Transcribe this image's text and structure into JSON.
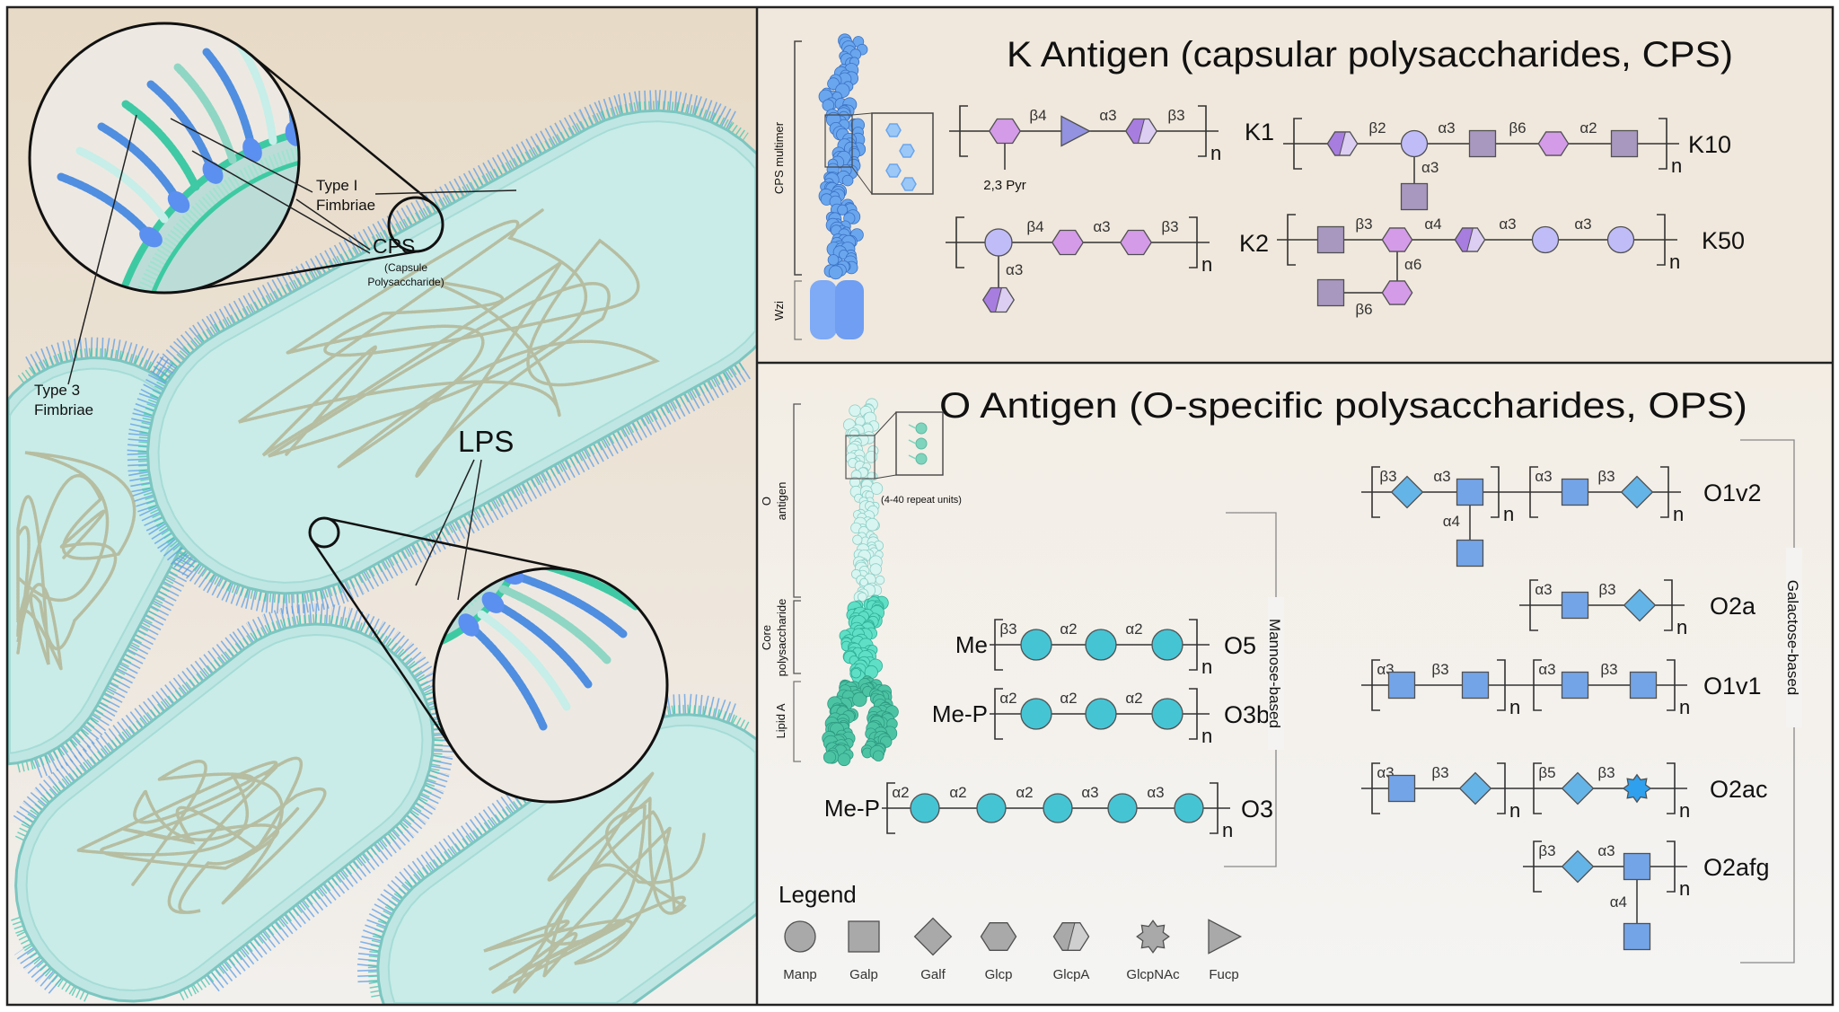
{
  "left_panel": {
    "type1_label": [
      "Type I",
      "Fimbriae"
    ],
    "cps_label": "CPS",
    "cps_sub_label": [
      "(Capsule",
      "Polysaccharide)"
    ],
    "type3_label": [
      "Type 3",
      "Fimbriae"
    ],
    "lps_label": "LPS"
  },
  "k_antigen": {
    "title": "K Antigen (capsular polysaccharides, CPS)",
    "cps_multimer_label": "CPS multimer",
    "wzi_label": "Wzi",
    "structures": [
      {
        "name": "K1",
        "repeat": "n",
        "units": [
          {
            "residues": [
              {
                "t": "Glcp",
                "c": "#d49be8"
              },
              {
                "t": "Fucp",
                "c": "#9292e0"
              },
              {
                "t": "GlcpA",
                "c": "#a87de0",
                "c2": "#dccdf2"
              }
            ],
            "links": [
              "β4",
              "α3",
              "β3"
            ]
          }
        ],
        "substituent": {
          "on": 0,
          "text": "2,3 Pyr"
        }
      },
      {
        "name": "K2",
        "repeat": "n",
        "units": [
          {
            "residues": [
              {
                "t": "Manp",
                "c": "#c0bcf8"
              },
              {
                "t": "Glcp",
                "c": "#d49be8"
              },
              {
                "t": "Glcp",
                "c": "#d49be8"
              }
            ],
            "links": [
              "β4",
              "α3",
              "β3"
            ],
            "branches": [
              {
                "on": 0,
                "link": "α3",
                "residues": [
                  {
                    "t": "GlcpA",
                    "c": "#a87de0",
                    "c2": "#dccdf2"
                  }
                ]
              }
            ]
          }
        ]
      },
      {
        "name": "K10",
        "repeat": "n",
        "units": [
          {
            "residues": [
              {
                "t": "GlcpA",
                "c": "#a87de0",
                "c2": "#dccdf2"
              },
              {
                "t": "Manp",
                "c": "#c0bcf8"
              },
              {
                "t": "Galp",
                "c": "#a898c0"
              },
              {
                "t": "Glcp",
                "c": "#d49be8"
              },
              {
                "t": "Galp",
                "c": "#a898c0"
              }
            ],
            "links": [
              "β2",
              "α3",
              "β6",
              "α2"
            ],
            "branches": [
              {
                "on": 1,
                "link": "α3",
                "residues": [
                  {
                    "t": "Galp",
                    "c": "#a898c0"
                  }
                ]
              }
            ]
          }
        ]
      },
      {
        "name": "K50",
        "repeat": "n",
        "units": [
          {
            "residues": [
              {
                "t": "Galp",
                "c": "#a898c0"
              },
              {
                "t": "Glcp",
                "c": "#d49be8"
              },
              {
                "t": "GlcpA",
                "c": "#a87de0",
                "c2": "#dccdf2"
              },
              {
                "t": "Manp",
                "c": "#c0bcf8"
              },
              {
                "t": "Manp",
                "c": "#c0bcf8"
              }
            ],
            "links": [
              "β3",
              "α4",
              "α3",
              "α3"
            ],
            "branches": [
              {
                "on": 1,
                "link": "α6",
                "residues": [
                  {
                    "t": "Glcp",
                    "c": "#d49be8"
                  },
                  {
                    "t": "Galp",
                    "c": "#a898c0",
                    "link": "β6"
                  }
                ]
              }
            ]
          }
        ]
      }
    ]
  },
  "o_antigen": {
    "title": "O Antigen (O-specific polysaccharides, OPS)",
    "o_antigen_label": [
      "O",
      "antigen"
    ],
    "core_label": [
      "Core",
      "polysaccharide"
    ],
    "lipid_a_label": "Lipid A",
    "repeat_units_label": "(4-40 repeat units)",
    "mannose_group_label": "Mannose-based",
    "galactose_group_label": "Galactose-based",
    "structures": [
      {
        "name": "O5",
        "prefix": "Me",
        "repeat": "n",
        "units": [
          {
            "residues": [
              {
                "t": "Manp",
                "c": "#45c4d4"
              },
              {
                "t": "Manp",
                "c": "#45c4d4"
              },
              {
                "t": "Manp",
                "c": "#45c4d4"
              }
            ],
            "links": [
              "β3",
              "α2",
              "α2"
            ]
          }
        ]
      },
      {
        "name": "O3b",
        "prefix": "Me-P",
        "repeat": "n",
        "units": [
          {
            "residues": [
              {
                "t": "Manp",
                "c": "#45c4d4"
              },
              {
                "t": "Manp",
                "c": "#45c4d4"
              },
              {
                "t": "Manp",
                "c": "#45c4d4"
              }
            ],
            "links": [
              "α2",
              "α2",
              "α2"
            ]
          }
        ]
      },
      {
        "name": "O3",
        "prefix": "Me-P",
        "repeat": "n",
        "units": [
          {
            "residues": [
              {
                "t": "Manp",
                "c": "#45c4d4"
              },
              {
                "t": "Manp",
                "c": "#45c4d4"
              },
              {
                "t": "Manp",
                "c": "#45c4d4"
              },
              {
                "t": "Manp",
                "c": "#45c4d4"
              },
              {
                "t": "Manp",
                "c": "#45c4d4"
              }
            ],
            "links": [
              "α2",
              "α2",
              "α2",
              "α3",
              "α3"
            ]
          }
        ]
      },
      {
        "name": "O1v2",
        "repeat": "n",
        "units": [
          {
            "residues": [
              {
                "t": "Galf",
                "c": "#64b4e8"
              },
              {
                "t": "Galp",
                "c": "#74a4e8"
              }
            ],
            "links": [
              "β3",
              "α3"
            ],
            "branches": [
              {
                "on": 1,
                "link": "α4",
                "residues": [
                  {
                    "t": "Galp",
                    "c": "#74a4e8"
                  }
                ]
              }
            ]
          },
          {
            "residues": [
              {
                "t": "Galp",
                "c": "#74a4e8"
              },
              {
                "t": "Galf",
                "c": "#64b4e8"
              }
            ],
            "links": [
              "α3",
              "β3"
            ]
          }
        ]
      },
      {
        "name": "O2a",
        "repeat": "n",
        "units": [
          {
            "residues": [
              {
                "t": "Galp",
                "c": "#74a4e8"
              },
              {
                "t": "Galf",
                "c": "#64b4e8"
              }
            ],
            "links": [
              "α3",
              "β3"
            ]
          }
        ]
      },
      {
        "name": "O1v1",
        "repeat": "n",
        "units": [
          {
            "residues": [
              {
                "t": "Galp",
                "c": "#74a4e8"
              },
              {
                "t": "Galp",
                "c": "#74a4e8"
              }
            ],
            "links": [
              "α3",
              "β3"
            ]
          },
          {
            "residues": [
              {
                "t": "Galp",
                "c": "#74a4e8"
              },
              {
                "t": "Galp",
                "c": "#74a4e8"
              }
            ],
            "links": [
              "α3",
              "β3"
            ]
          }
        ]
      },
      {
        "name": "O2ac",
        "repeat": "n",
        "units": [
          {
            "residues": [
              {
                "t": "Galp",
                "c": "#74a4e8"
              },
              {
                "t": "Galf",
                "c": "#64b4e8"
              }
            ],
            "links": [
              "α3",
              "β3"
            ]
          },
          {
            "residues": [
              {
                "t": "Galf",
                "c": "#64b4e8"
              },
              {
                "t": "GlcpNAc",
                "c": "#2fa0ee"
              }
            ],
            "links": [
              "β5",
              "β3"
            ]
          }
        ]
      },
      {
        "name": "O2afg",
        "repeat": "n",
        "units": [
          {
            "residues": [
              {
                "t": "Galf",
                "c": "#64b4e8"
              },
              {
                "t": "Galp",
                "c": "#74a4e8"
              }
            ],
            "links": [
              "β3",
              "α3"
            ],
            "branches": [
              {
                "on": 1,
                "link": "α4",
                "residues": [
                  {
                    "t": "Galp",
                    "c": "#74a4e8"
                  }
                ]
              }
            ]
          }
        ]
      }
    ]
  },
  "legend": {
    "title": "Legend",
    "color": "#a9a9a9",
    "items": [
      {
        "t": "Manp",
        "label": "Manp"
      },
      {
        "t": "Galp",
        "label": "Galp"
      },
      {
        "t": "Galf",
        "label": "Galf"
      },
      {
        "t": "Glcp",
        "label": "Glcp"
      },
      {
        "t": "GlcpA",
        "label": "GlcpA"
      },
      {
        "t": "GlcpNAc",
        "label": "GlcpNAc"
      },
      {
        "t": "Fucp",
        "label": "Fucp"
      }
    ]
  },
  "colors": {
    "left_bg_top": "#e7dac6",
    "left_bg_bottom": "#f1efeb",
    "k_panel_bg": "#f0e8dc",
    "o_panel_bg": "#f4f2ef",
    "cell_fill": "#bfe6e3",
    "cps_blue": "#5f9ce8",
    "lps_teal": "#4cc8a8",
    "pale_cyan": "#d6f5f0"
  }
}
